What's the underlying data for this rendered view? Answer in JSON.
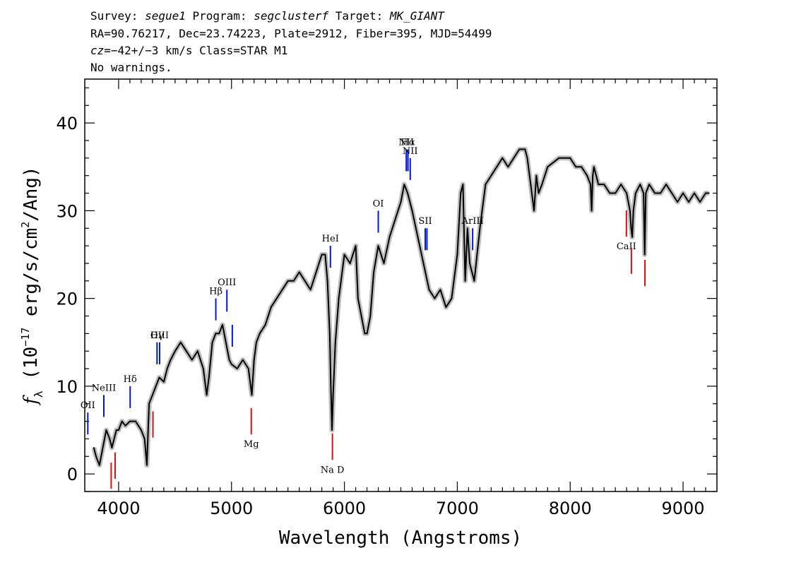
{
  "header": {
    "line1": {
      "survey_label": "Survey: ",
      "survey": "segue1",
      "program_label": " Program: ",
      "program": "segclusterf",
      "target_label": " Target: ",
      "target": "MK_GIANT"
    },
    "line2": "RA=90.76217, Dec=23.74223, Plate=2912, Fiber=395, MJD=54499",
    "line3": {
      "cz_label": "cz",
      "cz_value": "=−42+/−3",
      "rest": " km/s Class=STAR M1"
    },
    "line4": "No warnings."
  },
  "chart_data": {
    "type": "line",
    "xlabel": "Wavelength (Angstroms)",
    "ylabel_parts": {
      "f": "f",
      "sub": "λ",
      "pre": " (10",
      "exp1": "−17",
      "mid": " erg/s/cm",
      "exp2": "2",
      "post": "/Ang)"
    },
    "xlim": [
      3700,
      9300
    ],
    "ylim": [
      -2,
      45
    ],
    "xticks": [
      4000,
      5000,
      6000,
      7000,
      8000,
      9000
    ],
    "yticks": [
      0,
      10,
      20,
      30,
      40
    ],
    "colors": {
      "spectrum": "#000000",
      "error": "#bdbdbd",
      "emission": "#0018d8",
      "absorption": "#d81010"
    },
    "series": [
      {
        "x": [
          3780,
          3800,
          3830,
          3860,
          3890,
          3920,
          3940,
          3960,
          3980,
          4000,
          4030,
          4060,
          4100,
          4150,
          4200,
          4230,
          4250,
          4270,
          4300,
          4330,
          4360,
          4400,
          4430,
          4460,
          4500,
          4550,
          4600,
          4650,
          4700,
          4750,
          4780,
          4800,
          4830,
          4860,
          4890,
          4920,
          4950,
          4980,
          5000,
          5050,
          5100,
          5150,
          5170,
          5180,
          5200,
          5220,
          5250,
          5300,
          5350,
          5400,
          5450,
          5500,
          5550,
          5600,
          5650,
          5700,
          5750,
          5800,
          5830,
          5850,
          5870,
          5880,
          5890,
          5900,
          5920,
          5950,
          6000,
          6050,
          6100,
          6120,
          6150,
          6180,
          6200,
          6230,
          6260,
          6300,
          6350,
          6400,
          6450,
          6500,
          6530,
          6560,
          6600,
          6650,
          6700,
          6750,
          6800,
          6850,
          6900,
          6950,
          7000,
          7030,
          7050,
          7070,
          7090,
          7110,
          7130,
          7150,
          7200,
          7250,
          7300,
          7350,
          7400,
          7450,
          7500,
          7550,
          7600,
          7620,
          7650,
          7680,
          7700,
          7720,
          7750,
          7800,
          7900,
          8000,
          8050,
          8100,
          8150,
          8180,
          8190,
          8200,
          8210,
          8250,
          8300,
          8350,
          8400,
          8450,
          8500,
          8530,
          8540,
          8550,
          8560,
          8580,
          8620,
          8650,
          8660,
          8670,
          8700,
          8750,
          8800,
          8850,
          8900,
          8950,
          9000,
          9050,
          9100,
          9150,
          9200,
          9230
        ],
        "values": [
          3,
          2,
          1,
          3,
          5,
          4,
          3,
          4,
          5,
          5,
          6,
          5.5,
          6,
          6,
          5,
          4,
          1,
          8,
          9,
          10,
          11,
          10.5,
          12,
          13,
          14,
          15,
          14,
          13,
          14,
          12,
          9,
          11,
          15,
          16,
          16,
          17,
          15,
          13,
          12.5,
          12,
          13,
          12,
          10,
          9,
          13,
          15,
          16,
          17,
          19,
          20,
          21,
          22,
          22,
          23,
          22,
          21,
          23,
          25,
          25,
          22,
          16,
          10,
          5,
          9,
          15,
          20,
          25,
          24,
          26,
          20,
          18,
          16,
          16,
          18,
          23,
          26,
          24,
          27,
          29,
          31,
          33,
          32,
          30,
          27,
          24,
          21,
          20,
          21,
          19,
          20,
          25,
          32,
          33,
          22,
          28,
          24,
          23,
          22,
          28,
          33,
          34,
          35,
          36,
          35,
          36,
          37,
          37,
          36,
          33,
          30,
          34,
          32,
          33,
          35,
          36,
          36,
          35,
          35,
          34,
          33,
          30,
          34,
          35,
          33,
          33,
          32,
          32,
          33,
          32,
          30,
          28,
          27,
          30,
          32,
          33,
          32,
          25,
          32,
          33,
          32,
          32,
          33,
          32,
          31,
          32,
          31,
          32,
          31,
          32,
          32
        ]
      }
    ],
    "emission_lines": [
      {
        "label": "OII",
        "x": 3727
      },
      {
        "label": "NeIII",
        "x": 3869
      },
      {
        "label": "Hδ",
        "x": 4102
      },
      {
        "label": "Hγ",
        "x": 4340
      },
      {
        "label": "OIII",
        "x": 4363
      },
      {
        "label": "Hβ",
        "x": 4861
      },
      {
        "label": "OIII",
        "x": 4959
      },
      {
        "label": "",
        "x": 5007
      },
      {
        "label": "HeI",
        "x": 5876
      },
      {
        "label": "OI",
        "x": 6300
      },
      {
        "label": "NII",
        "x": 6548
      },
      {
        "label": "Hα",
        "x": 6563
      },
      {
        "label": "NII",
        "x": 6583
      },
      {
        "label": "SII",
        "x": 6716
      },
      {
        "label": "",
        "x": 6731
      },
      {
        "label": "ArIII",
        "x": 7136
      }
    ],
    "absorption_lines": [
      {
        "label": "",
        "x": 3934
      },
      {
        "label": "",
        "x": 3969
      },
      {
        "label": "",
        "x": 4304
      },
      {
        "label": "Mg",
        "x": 5175
      },
      {
        "label": "Na D",
        "x": 5894
      },
      {
        "label": "CaII",
        "x": 8498
      },
      {
        "label": "",
        "x": 8542
      },
      {
        "label": "",
        "x": 8662
      }
    ]
  }
}
